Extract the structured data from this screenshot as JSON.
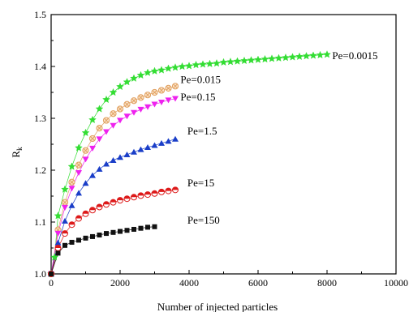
{
  "chart_data": {
    "type": "scatter",
    "title": "",
    "xlabel": "Number of injected particles",
    "ylabel_main": "R",
    "ylabel_sub": "k",
    "xlim": [
      0,
      10000
    ],
    "ylim": [
      1.0,
      1.5
    ],
    "xticks": [
      0,
      2000,
      4000,
      6000,
      8000,
      10000
    ],
    "yticks": [
      1.0,
      1.1,
      1.2,
      1.3,
      1.4,
      1.5
    ],
    "xtick_labels": [
      "0",
      "2000",
      "4000",
      "6000",
      "8000",
      "10000"
    ],
    "ytick_labels": [
      "1.0",
      "1.1",
      "1.2",
      "1.3",
      "1.4",
      "1.5"
    ],
    "grid": false,
    "legend": "inline labels at series ends",
    "series": [
      {
        "name": "Pe=0.0015",
        "marker": "star",
        "color": "#33dd33",
        "x": [
          0,
          100,
          200,
          400,
          600,
          800,
          1000,
          1200,
          1400,
          1600,
          1800,
          2000,
          2200,
          2400,
          2600,
          2800,
          3000,
          3200,
          3400,
          3600,
          3800,
          4000,
          4200,
          4400,
          4600,
          4800,
          5000,
          5200,
          5400,
          5600,
          5800,
          6000,
          6200,
          6400,
          6600,
          6800,
          7000,
          7200,
          7400,
          7600,
          7800,
          8000
        ],
        "y": [
          1.0,
          1.032,
          1.112,
          1.163,
          1.207,
          1.243,
          1.272,
          1.297,
          1.318,
          1.336,
          1.35,
          1.361,
          1.37,
          1.377,
          1.383,
          1.388,
          1.391,
          1.393,
          1.396,
          1.398,
          1.4,
          1.401,
          1.403,
          1.404,
          1.405,
          1.406,
          1.408,
          1.409,
          1.41,
          1.411,
          1.412,
          1.413,
          1.414,
          1.415,
          1.416,
          1.417,
          1.418,
          1.419,
          1.42,
          1.421,
          1.422,
          1.423
        ]
      },
      {
        "name": "Pe=0.015",
        "marker": "circle-cross",
        "color": "#e0a060",
        "x": [
          0,
          200,
          400,
          600,
          800,
          1000,
          1200,
          1400,
          1600,
          1800,
          2000,
          2200,
          2400,
          2600,
          2800,
          3000,
          3200,
          3400,
          3600
        ],
        "y": [
          1.0,
          1.085,
          1.138,
          1.177,
          1.21,
          1.238,
          1.261,
          1.281,
          1.296,
          1.309,
          1.318,
          1.327,
          1.334,
          1.34,
          1.345,
          1.35,
          1.354,
          1.358,
          1.362
        ]
      },
      {
        "name": "Pe=0.15",
        "marker": "triangle-down",
        "color": "#ee22ee",
        "x": [
          0,
          200,
          400,
          600,
          800,
          1000,
          1200,
          1400,
          1600,
          1800,
          2000,
          2200,
          2400,
          2600,
          2800,
          3000,
          3200,
          3400,
          3600
        ],
        "y": [
          1.0,
          1.078,
          1.128,
          1.165,
          1.195,
          1.221,
          1.242,
          1.26,
          1.274,
          1.286,
          1.296,
          1.304,
          1.311,
          1.317,
          1.322,
          1.327,
          1.331,
          1.335,
          1.338
        ]
      },
      {
        "name": "Pe=1.5",
        "marker": "triangle-up",
        "color": "#1a3ec8",
        "x": [
          0,
          200,
          400,
          600,
          800,
          1000,
          1200,
          1400,
          1600,
          1800,
          2000,
          2200,
          2400,
          2600,
          2800,
          3000,
          3200,
          3400,
          3600
        ],
        "y": [
          1.0,
          1.06,
          1.102,
          1.132,
          1.156,
          1.175,
          1.19,
          1.202,
          1.212,
          1.219,
          1.225,
          1.23,
          1.235,
          1.24,
          1.244,
          1.248,
          1.252,
          1.256,
          1.26
        ]
      },
      {
        "name": "Pe=15",
        "marker": "circle-half",
        "color": "#dd1a1a",
        "x": [
          0,
          200,
          400,
          600,
          800,
          1000,
          1200,
          1400,
          1600,
          1800,
          2000,
          2200,
          2400,
          2600,
          2800,
          3000,
          3200,
          3400,
          3600
        ],
        "y": [
          1.0,
          1.05,
          1.078,
          1.095,
          1.107,
          1.116,
          1.123,
          1.129,
          1.134,
          1.138,
          1.142,
          1.145,
          1.148,
          1.151,
          1.153,
          1.155,
          1.158,
          1.16,
          1.162
        ]
      },
      {
        "name": "Pe=150",
        "marker": "square",
        "color": "#111111",
        "x": [
          0,
          200,
          400,
          600,
          800,
          1000,
          1200,
          1400,
          1600,
          1800,
          2000,
          2200,
          2400,
          2600,
          2800,
          3000
        ],
        "y": [
          1.0,
          1.04,
          1.055,
          1.061,
          1.065,
          1.069,
          1.072,
          1.075,
          1.078,
          1.08,
          1.082,
          1.084,
          1.086,
          1.088,
          1.09,
          1.091
        ]
      }
    ],
    "labels": [
      {
        "text": "Pe=0.0015",
        "at": [
          8150,
          1.42
        ]
      },
      {
        "text": "Pe=0.015",
        "at": [
          3750,
          1.374
        ]
      },
      {
        "text": "Pe=0.15",
        "at": [
          3750,
          1.341
        ]
      },
      {
        "text": "Pe=1.5",
        "at": [
          3950,
          1.275
        ]
      },
      {
        "text": "Pe=15",
        "at": [
          3950,
          1.175
        ]
      },
      {
        "text": "Pe=150",
        "at": [
          3950,
          1.103
        ]
      }
    ]
  }
}
